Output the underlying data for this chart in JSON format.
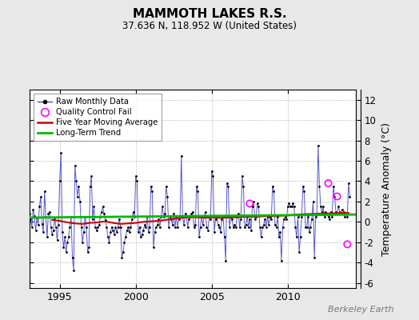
{
  "title": "MAMMOTH LAKES R.S.",
  "subtitle": "37.636 N, 118.952 W (United States)",
  "ylabel": "Temperature Anomaly (°C)",
  "watermark": "Berkeley Earth",
  "xlim": [
    1993.0,
    2014.5
  ],
  "ylim": [
    -6.5,
    13.0
  ],
  "yticks": [
    -6,
    -4,
    -2,
    0,
    2,
    4,
    6,
    8,
    10,
    12
  ],
  "xticks": [
    1995,
    2000,
    2005,
    2010
  ],
  "bg_color": "#e8e8e8",
  "plot_bg": "#ffffff",
  "line_color": "#4444cc",
  "dot_color": "#000000",
  "ma_color": "#cc0000",
  "trend_color": "#00bb00",
  "qc_color": "#ff00ff",
  "raw_data": [
    [
      1993.0,
      0.8
    ],
    [
      1993.083,
      0.3
    ],
    [
      1993.167,
      -0.5
    ],
    [
      1993.25,
      1.2
    ],
    [
      1993.333,
      0.6
    ],
    [
      1993.417,
      -0.8
    ],
    [
      1993.5,
      0.4
    ],
    [
      1993.583,
      -0.3
    ],
    [
      1993.667,
      1.5
    ],
    [
      1993.75,
      2.5
    ],
    [
      1993.833,
      -0.2
    ],
    [
      1993.917,
      -1.0
    ],
    [
      1994.0,
      3.0
    ],
    [
      1994.083,
      0.5
    ],
    [
      1994.167,
      -1.5
    ],
    [
      1994.25,
      0.8
    ],
    [
      1994.333,
      1.0
    ],
    [
      1994.417,
      -0.5
    ],
    [
      1994.5,
      -1.2
    ],
    [
      1994.583,
      -0.8
    ],
    [
      1994.667,
      0.3
    ],
    [
      1994.75,
      -0.5
    ],
    [
      1994.833,
      -1.8
    ],
    [
      1994.917,
      -0.3
    ],
    [
      1995.0,
      4.0
    ],
    [
      1995.083,
      6.8
    ],
    [
      1995.167,
      -1.0
    ],
    [
      1995.25,
      -2.5
    ],
    [
      1995.333,
      -1.5
    ],
    [
      1995.417,
      -3.0
    ],
    [
      1995.5,
      -2.0
    ],
    [
      1995.583,
      -1.5
    ],
    [
      1995.667,
      -0.5
    ],
    [
      1995.75,
      0.5
    ],
    [
      1995.833,
      -3.5
    ],
    [
      1995.917,
      -4.8
    ],
    [
      1996.0,
      5.5
    ],
    [
      1996.083,
      4.0
    ],
    [
      1996.167,
      2.5
    ],
    [
      1996.25,
      3.5
    ],
    [
      1996.333,
      2.0
    ],
    [
      1996.417,
      -0.5
    ],
    [
      1996.5,
      -2.0
    ],
    [
      1996.583,
      -1.0
    ],
    [
      1996.667,
      0.5
    ],
    [
      1996.75,
      -0.5
    ],
    [
      1996.833,
      -3.0
    ],
    [
      1996.917,
      -2.5
    ],
    [
      1997.0,
      3.5
    ],
    [
      1997.083,
      4.5
    ],
    [
      1997.167,
      0.3
    ],
    [
      1997.25,
      1.5
    ],
    [
      1997.333,
      -0.5
    ],
    [
      1997.417,
      -0.8
    ],
    [
      1997.5,
      -0.5
    ],
    [
      1997.583,
      -0.3
    ],
    [
      1997.667,
      0.5
    ],
    [
      1997.75,
      1.0
    ],
    [
      1997.833,
      1.5
    ],
    [
      1997.917,
      0.8
    ],
    [
      1998.0,
      0.2
    ],
    [
      1998.083,
      -0.5
    ],
    [
      1998.167,
      -1.5
    ],
    [
      1998.25,
      -2.0
    ],
    [
      1998.333,
      -1.0
    ],
    [
      1998.417,
      -0.5
    ],
    [
      1998.5,
      -0.8
    ],
    [
      1998.583,
      -1.2
    ],
    [
      1998.667,
      -0.5
    ],
    [
      1998.75,
      -1.0
    ],
    [
      1998.833,
      -0.5
    ],
    [
      1998.917,
      0.3
    ],
    [
      1999.0,
      -0.5
    ],
    [
      1999.083,
      -3.5
    ],
    [
      1999.167,
      -3.0
    ],
    [
      1999.25,
      -2.0
    ],
    [
      1999.333,
      -1.5
    ],
    [
      1999.417,
      -0.8
    ],
    [
      1999.5,
      -0.5
    ],
    [
      1999.583,
      -1.0
    ],
    [
      1999.667,
      -0.5
    ],
    [
      1999.75,
      0.3
    ],
    [
      1999.833,
      1.0
    ],
    [
      1999.917,
      0.5
    ],
    [
      2000.0,
      4.5
    ],
    [
      2000.083,
      4.0
    ],
    [
      2000.167,
      -1.0
    ],
    [
      2000.25,
      -0.5
    ],
    [
      2000.333,
      -1.5
    ],
    [
      2000.417,
      -1.2
    ],
    [
      2000.5,
      -0.8
    ],
    [
      2000.583,
      -0.3
    ],
    [
      2000.667,
      -0.5
    ],
    [
      2000.75,
      0.5
    ],
    [
      2000.833,
      -1.0
    ],
    [
      2000.917,
      -0.5
    ],
    [
      2001.0,
      3.5
    ],
    [
      2001.083,
      3.0
    ],
    [
      2001.167,
      -2.5
    ],
    [
      2001.25,
      -1.0
    ],
    [
      2001.333,
      -0.5
    ],
    [
      2001.417,
      -0.3
    ],
    [
      2001.5,
      0.3
    ],
    [
      2001.583,
      -0.5
    ],
    [
      2001.667,
      0.5
    ],
    [
      2001.75,
      1.5
    ],
    [
      2001.833,
      0.5
    ],
    [
      2001.917,
      0.8
    ],
    [
      2002.0,
      3.5
    ],
    [
      2002.083,
      2.5
    ],
    [
      2002.167,
      -0.5
    ],
    [
      2002.25,
      0.5
    ],
    [
      2002.333,
      0.3
    ],
    [
      2002.417,
      -0.3
    ],
    [
      2002.5,
      0.8
    ],
    [
      2002.583,
      -0.5
    ],
    [
      2002.667,
      0.5
    ],
    [
      2002.75,
      -0.5
    ],
    [
      2002.833,
      0.3
    ],
    [
      2002.917,
      0.5
    ],
    [
      2003.0,
      6.5
    ],
    [
      2003.083,
      0.5
    ],
    [
      2003.167,
      -0.3
    ],
    [
      2003.25,
      0.8
    ],
    [
      2003.333,
      0.5
    ],
    [
      2003.417,
      -0.5
    ],
    [
      2003.5,
      0.3
    ],
    [
      2003.583,
      0.5
    ],
    [
      2003.667,
      0.8
    ],
    [
      2003.75,
      1.0
    ],
    [
      2003.833,
      -0.5
    ],
    [
      2003.917,
      -0.3
    ],
    [
      2004.0,
      3.5
    ],
    [
      2004.083,
      3.0
    ],
    [
      2004.167,
      -1.5
    ],
    [
      2004.25,
      -0.5
    ],
    [
      2004.333,
      0.5
    ],
    [
      2004.417,
      -0.3
    ],
    [
      2004.5,
      0.5
    ],
    [
      2004.583,
      1.0
    ],
    [
      2004.667,
      -0.5
    ],
    [
      2004.75,
      -0.8
    ],
    [
      2004.833,
      0.5
    ],
    [
      2004.917,
      0.3
    ],
    [
      2005.0,
      5.0
    ],
    [
      2005.083,
      4.5
    ],
    [
      2005.167,
      -1.0
    ],
    [
      2005.25,
      0.3
    ],
    [
      2005.333,
      0.5
    ],
    [
      2005.417,
      -0.3
    ],
    [
      2005.5,
      -0.5
    ],
    [
      2005.583,
      -1.0
    ],
    [
      2005.667,
      0.3
    ],
    [
      2005.75,
      0.5
    ],
    [
      2005.833,
      -1.5
    ],
    [
      2005.917,
      -3.8
    ],
    [
      2006.0,
      3.8
    ],
    [
      2006.083,
      3.5
    ],
    [
      2006.167,
      -0.5
    ],
    [
      2006.25,
      0.5
    ],
    [
      2006.333,
      0.3
    ],
    [
      2006.417,
      -0.5
    ],
    [
      2006.5,
      -0.3
    ],
    [
      2006.583,
      -0.5
    ],
    [
      2006.667,
      0.5
    ],
    [
      2006.75,
      0.8
    ],
    [
      2006.833,
      -0.5
    ],
    [
      2006.917,
      0.3
    ],
    [
      2007.0,
      4.5
    ],
    [
      2007.083,
      3.5
    ],
    [
      2007.167,
      -0.5
    ],
    [
      2007.25,
      -0.3
    ],
    [
      2007.333,
      0.5
    ],
    [
      2007.417,
      -0.5
    ],
    [
      2007.5,
      0.3
    ],
    [
      2007.583,
      -0.8
    ],
    [
      2007.667,
      1.5
    ],
    [
      2007.75,
      2.0
    ],
    [
      2007.833,
      0.3
    ],
    [
      2007.917,
      0.5
    ],
    [
      2008.0,
      1.8
    ],
    [
      2008.083,
      1.5
    ],
    [
      2008.167,
      -0.5
    ],
    [
      2008.25,
      -1.5
    ],
    [
      2008.333,
      -0.5
    ],
    [
      2008.417,
      -0.3
    ],
    [
      2008.5,
      0.3
    ],
    [
      2008.583,
      -0.5
    ],
    [
      2008.667,
      0.5
    ],
    [
      2008.75,
      -0.3
    ],
    [
      2008.833,
      0.5
    ],
    [
      2008.917,
      0.3
    ],
    [
      2009.0,
      3.5
    ],
    [
      2009.083,
      3.0
    ],
    [
      2009.167,
      -0.3
    ],
    [
      2009.25,
      -0.5
    ],
    [
      2009.333,
      0.5
    ],
    [
      2009.417,
      -1.5
    ],
    [
      2009.5,
      -1.0
    ],
    [
      2009.583,
      -3.8
    ],
    [
      2009.667,
      -0.5
    ],
    [
      2009.75,
      0.3
    ],
    [
      2009.833,
      0.5
    ],
    [
      2009.917,
      0.3
    ],
    [
      2010.0,
      1.5
    ],
    [
      2010.083,
      1.8
    ],
    [
      2010.167,
      1.5
    ],
    [
      2010.25,
      1.5
    ],
    [
      2010.333,
      1.8
    ],
    [
      2010.417,
      1.5
    ],
    [
      2010.5,
      -0.5
    ],
    [
      2010.583,
      -1.5
    ],
    [
      2010.667,
      0.5
    ],
    [
      2010.75,
      -3.0
    ],
    [
      2010.833,
      -1.5
    ],
    [
      2010.917,
      0.5
    ],
    [
      2011.0,
      3.5
    ],
    [
      2011.083,
      3.0
    ],
    [
      2011.167,
      -0.5
    ],
    [
      2011.25,
      -0.5
    ],
    [
      2011.333,
      0.5
    ],
    [
      2011.417,
      -1.0
    ],
    [
      2011.5,
      -0.5
    ],
    [
      2011.583,
      0.3
    ],
    [
      2011.667,
      2.0
    ],
    [
      2011.75,
      -3.5
    ],
    [
      2011.833,
      0.5
    ],
    [
      2011.917,
      0.8
    ],
    [
      2012.0,
      7.5
    ],
    [
      2012.083,
      3.5
    ],
    [
      2012.167,
      1.5
    ],
    [
      2012.25,
      1.0
    ],
    [
      2012.333,
      1.5
    ],
    [
      2012.417,
      0.5
    ],
    [
      2012.5,
      1.0
    ],
    [
      2012.583,
      0.8
    ],
    [
      2012.667,
      0.5
    ],
    [
      2012.75,
      0.3
    ],
    [
      2012.833,
      1.0
    ],
    [
      2012.917,
      0.5
    ],
    [
      2013.0,
      3.5
    ],
    [
      2013.083,
      2.5
    ],
    [
      2013.167,
      1.0
    ],
    [
      2013.25,
      0.8
    ],
    [
      2013.333,
      1.5
    ],
    [
      2013.417,
      1.0
    ],
    [
      2013.5,
      0.8
    ],
    [
      2013.583,
      1.2
    ],
    [
      2013.667,
      1.0
    ],
    [
      2013.75,
      0.5
    ],
    [
      2013.833,
      0.8
    ],
    [
      2013.917,
      0.5
    ],
    [
      2014.0,
      3.8
    ],
    [
      2014.083,
      2.5
    ]
  ],
  "qc_fail": [
    [
      2007.5,
      1.8
    ],
    [
      2012.667,
      3.8
    ],
    [
      2013.25,
      2.5
    ],
    [
      2013.917,
      -2.2
    ]
  ],
  "moving_avg": [
    [
      1994.5,
      0.2
    ],
    [
      1995.0,
      0.1
    ],
    [
      1995.5,
      -0.05
    ],
    [
      1996.0,
      -0.15
    ],
    [
      1996.5,
      -0.2
    ],
    [
      1997.0,
      -0.1
    ],
    [
      1997.5,
      -0.05
    ],
    [
      1998.0,
      0.05
    ],
    [
      1998.5,
      -0.1
    ],
    [
      1999.0,
      -0.2
    ],
    [
      1999.5,
      -0.15
    ],
    [
      2000.0,
      -0.1
    ],
    [
      2000.5,
      0.0
    ],
    [
      2001.0,
      0.05
    ],
    [
      2001.5,
      0.1
    ],
    [
      2002.0,
      0.2
    ],
    [
      2002.5,
      0.3
    ],
    [
      2003.0,
      0.4
    ],
    [
      2003.5,
      0.45
    ],
    [
      2004.0,
      0.45
    ],
    [
      2004.5,
      0.4
    ],
    [
      2005.0,
      0.45
    ],
    [
      2005.5,
      0.4
    ],
    [
      2006.0,
      0.42
    ],
    [
      2006.5,
      0.45
    ],
    [
      2007.0,
      0.48
    ],
    [
      2007.5,
      0.5
    ],
    [
      2008.0,
      0.52
    ],
    [
      2008.5,
      0.55
    ],
    [
      2009.0,
      0.55
    ],
    [
      2009.5,
      0.6
    ],
    [
      2010.0,
      0.65
    ],
    [
      2010.5,
      0.7
    ],
    [
      2011.0,
      0.75
    ],
    [
      2011.5,
      0.78
    ],
    [
      2012.0,
      0.8
    ],
    [
      2012.5,
      0.82
    ],
    [
      2013.0,
      0.85
    ],
    [
      2013.5,
      0.88
    ],
    [
      2014.0,
      0.88
    ]
  ],
  "trend_x": [
    1993.0,
    2014.5
  ],
  "trend_y": [
    0.42,
    0.72
  ]
}
